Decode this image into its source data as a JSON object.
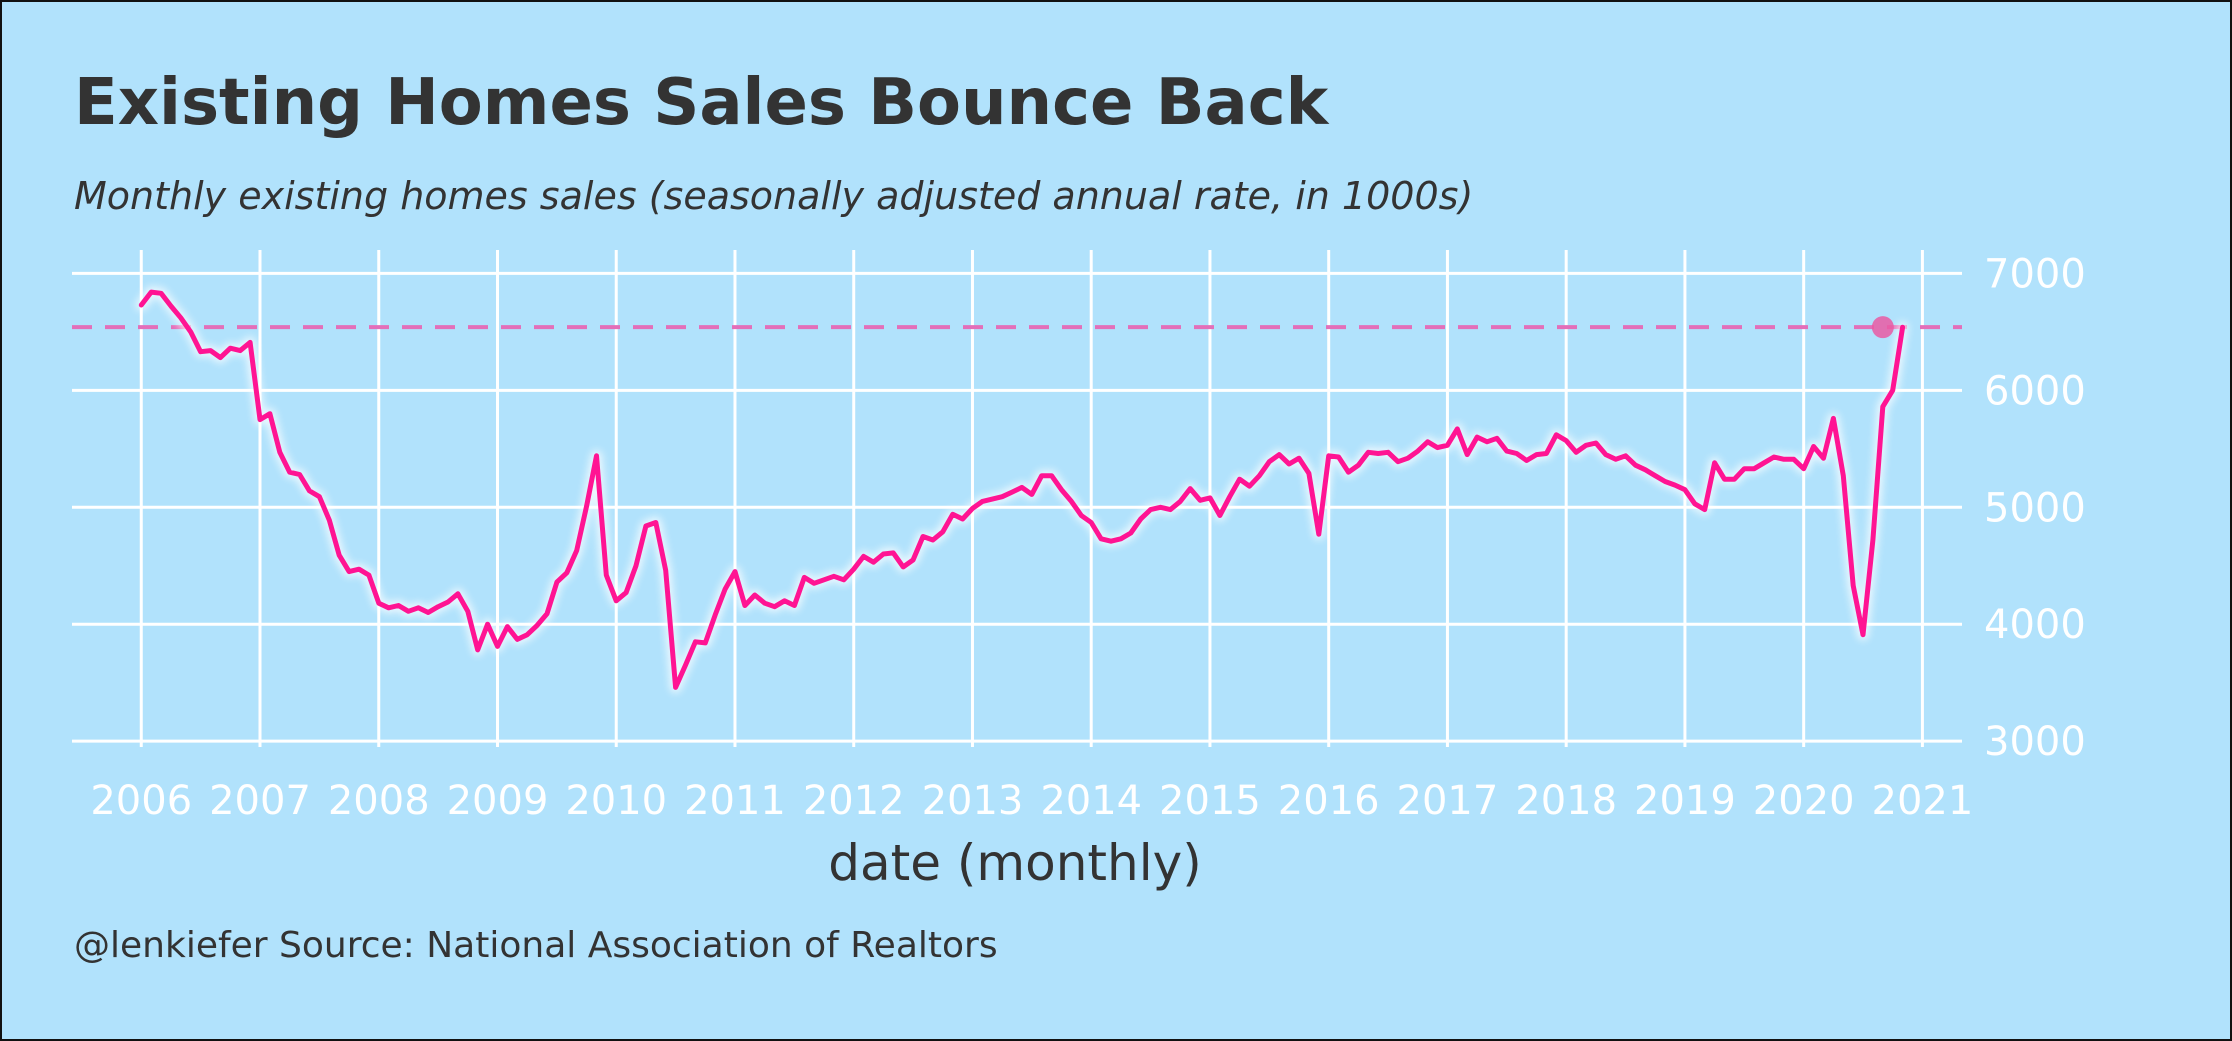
{
  "chart_data": {
    "type": "line",
    "title": "Existing Homes Sales Bounce Back",
    "subtitle": "Monthly existing homes sales (seasonally adjusted annual rate, in 1000s)",
    "xlabel": "date (monthly)",
    "ylabel": "",
    "caption": "@lenkiefer Source: National Association of Realtors",
    "x_ticks": [
      "2006",
      "2007",
      "2008",
      "2009",
      "2010",
      "2011",
      "2012",
      "2013",
      "2014",
      "2015",
      "2016",
      "2017",
      "2018",
      "2019",
      "2020",
      "2021"
    ],
    "y_ticks": [
      "3000",
      "4000",
      "5000",
      "6000",
      "7000"
    ],
    "xlim": [
      "2005-06",
      "2021-05"
    ],
    "ylim": [
      2950,
      7200
    ],
    "y_axis_position": "right",
    "grid": true,
    "reference_line": {
      "value": 6540,
      "style": "dashed",
      "color": "#e36fb9"
    },
    "highlight_point": {
      "date": "2020-09",
      "value": 6540,
      "color": "#ea5aa3"
    },
    "colors": {
      "background": "#b1e2fc",
      "line": "#ff1493",
      "grid": "#ffffff",
      "text": "#333333",
      "tick_text": "#ffffff"
    },
    "series": [
      {
        "start": "2006-01",
        "frequency": "monthly",
        "values": [
          6730,
          6840,
          6830,
          6720,
          6620,
          6500,
          6330,
          6340,
          6280,
          6360,
          6340,
          6410,
          5750,
          5800,
          5470,
          5300,
          5280,
          5140,
          5090,
          4890,
          4590,
          4450,
          4470,
          4420,
          4180,
          4140,
          4160,
          4110,
          4140,
          4100,
          4150,
          4190,
          4260,
          4110,
          3780,
          4000,
          3810,
          3980,
          3870,
          3910,
          3990,
          4090,
          4360,
          4440,
          4630,
          5010,
          5440,
          4420,
          4200,
          4270,
          4500,
          4840,
          4870,
          4460,
          3460,
          3650,
          3850,
          3840,
          4080,
          4300,
          4450,
          4160,
          4250,
          4180,
          4150,
          4200,
          4160,
          4400,
          4350,
          4380,
          4410,
          4380,
          4470,
          4580,
          4530,
          4600,
          4610,
          4490,
          4550,
          4750,
          4720,
          4790,
          4940,
          4900,
          4990,
          5050,
          5070,
          5090,
          5130,
          5170,
          5110,
          5270,
          5270,
          5150,
          5050,
          4930,
          4870,
          4730,
          4710,
          4730,
          4780,
          4900,
          4980,
          5000,
          4980,
          5050,
          5160,
          5060,
          5080,
          4930,
          5090,
          5240,
          5180,
          5270,
          5390,
          5450,
          5370,
          5420,
          5290,
          4770,
          5440,
          5430,
          5300,
          5360,
          5470,
          5460,
          5470,
          5390,
          5420,
          5480,
          5560,
          5510,
          5530,
          5670,
          5450,
          5600,
          5560,
          5590,
          5480,
          5460,
          5400,
          5450,
          5460,
          5620,
          5570,
          5470,
          5530,
          5550,
          5450,
          5410,
          5440,
          5360,
          5320,
          5270,
          5220,
          5190,
          5150,
          5030,
          4980,
          5380,
          5240,
          5240,
          5330,
          5330,
          5380,
          5430,
          5410,
          5410,
          5330,
          5520,
          5420,
          5760,
          5270,
          4330,
          3910,
          4720,
          5860,
          6000,
          6540
        ]
      }
    ]
  }
}
